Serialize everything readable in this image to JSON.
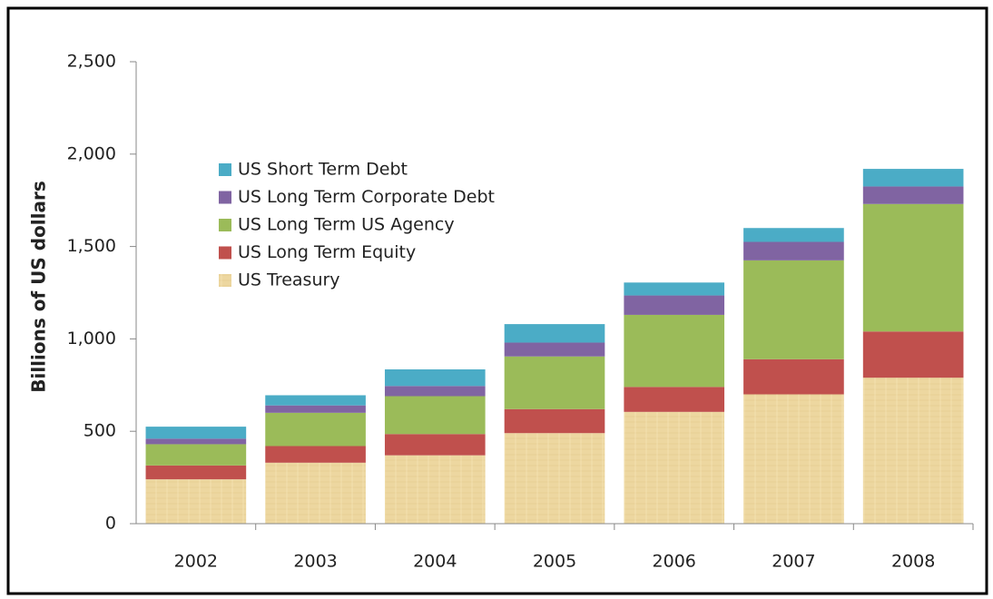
{
  "chart_data": {
    "type": "stacked_bar",
    "y_label": "Billions of US dollars",
    "categories": [
      "2002",
      "2003",
      "2004",
      "2005",
      "2006",
      "2007",
      "2008"
    ],
    "series": [
      {
        "name": "US Treasury",
        "color": "#edd7a0",
        "values": [
          240,
          330,
          370,
          490,
          605,
          700,
          790
        ]
      },
      {
        "name": "US Long Term Equity",
        "color": "#c0504d",
        "values": [
          75,
          90,
          115,
          130,
          135,
          190,
          250
        ]
      },
      {
        "name": "US Long Term US Agency",
        "color": "#9bbb59",
        "values": [
          115,
          180,
          205,
          285,
          390,
          535,
          690
        ]
      },
      {
        "name": "US Long Term Corporate Debt",
        "color": "#8064a2",
        "values": [
          30,
          40,
          55,
          75,
          105,
          100,
          95
        ]
      },
      {
        "name": "US Short Term Debt",
        "color": "#4bacc6",
        "values": [
          65,
          55,
          90,
          100,
          70,
          75,
          95
        ]
      }
    ],
    "ylim": [
      0,
      2500
    ],
    "yticks": [
      0,
      500,
      {
        "value": 1000,
        "label": "1,000"
      },
      {
        "value": 1500,
        "label": "1,500"
      },
      {
        "value": 2000,
        "label": "2,000"
      },
      {
        "value": 2500,
        "label": "2,500"
      }
    ],
    "legend": "upper left"
  }
}
